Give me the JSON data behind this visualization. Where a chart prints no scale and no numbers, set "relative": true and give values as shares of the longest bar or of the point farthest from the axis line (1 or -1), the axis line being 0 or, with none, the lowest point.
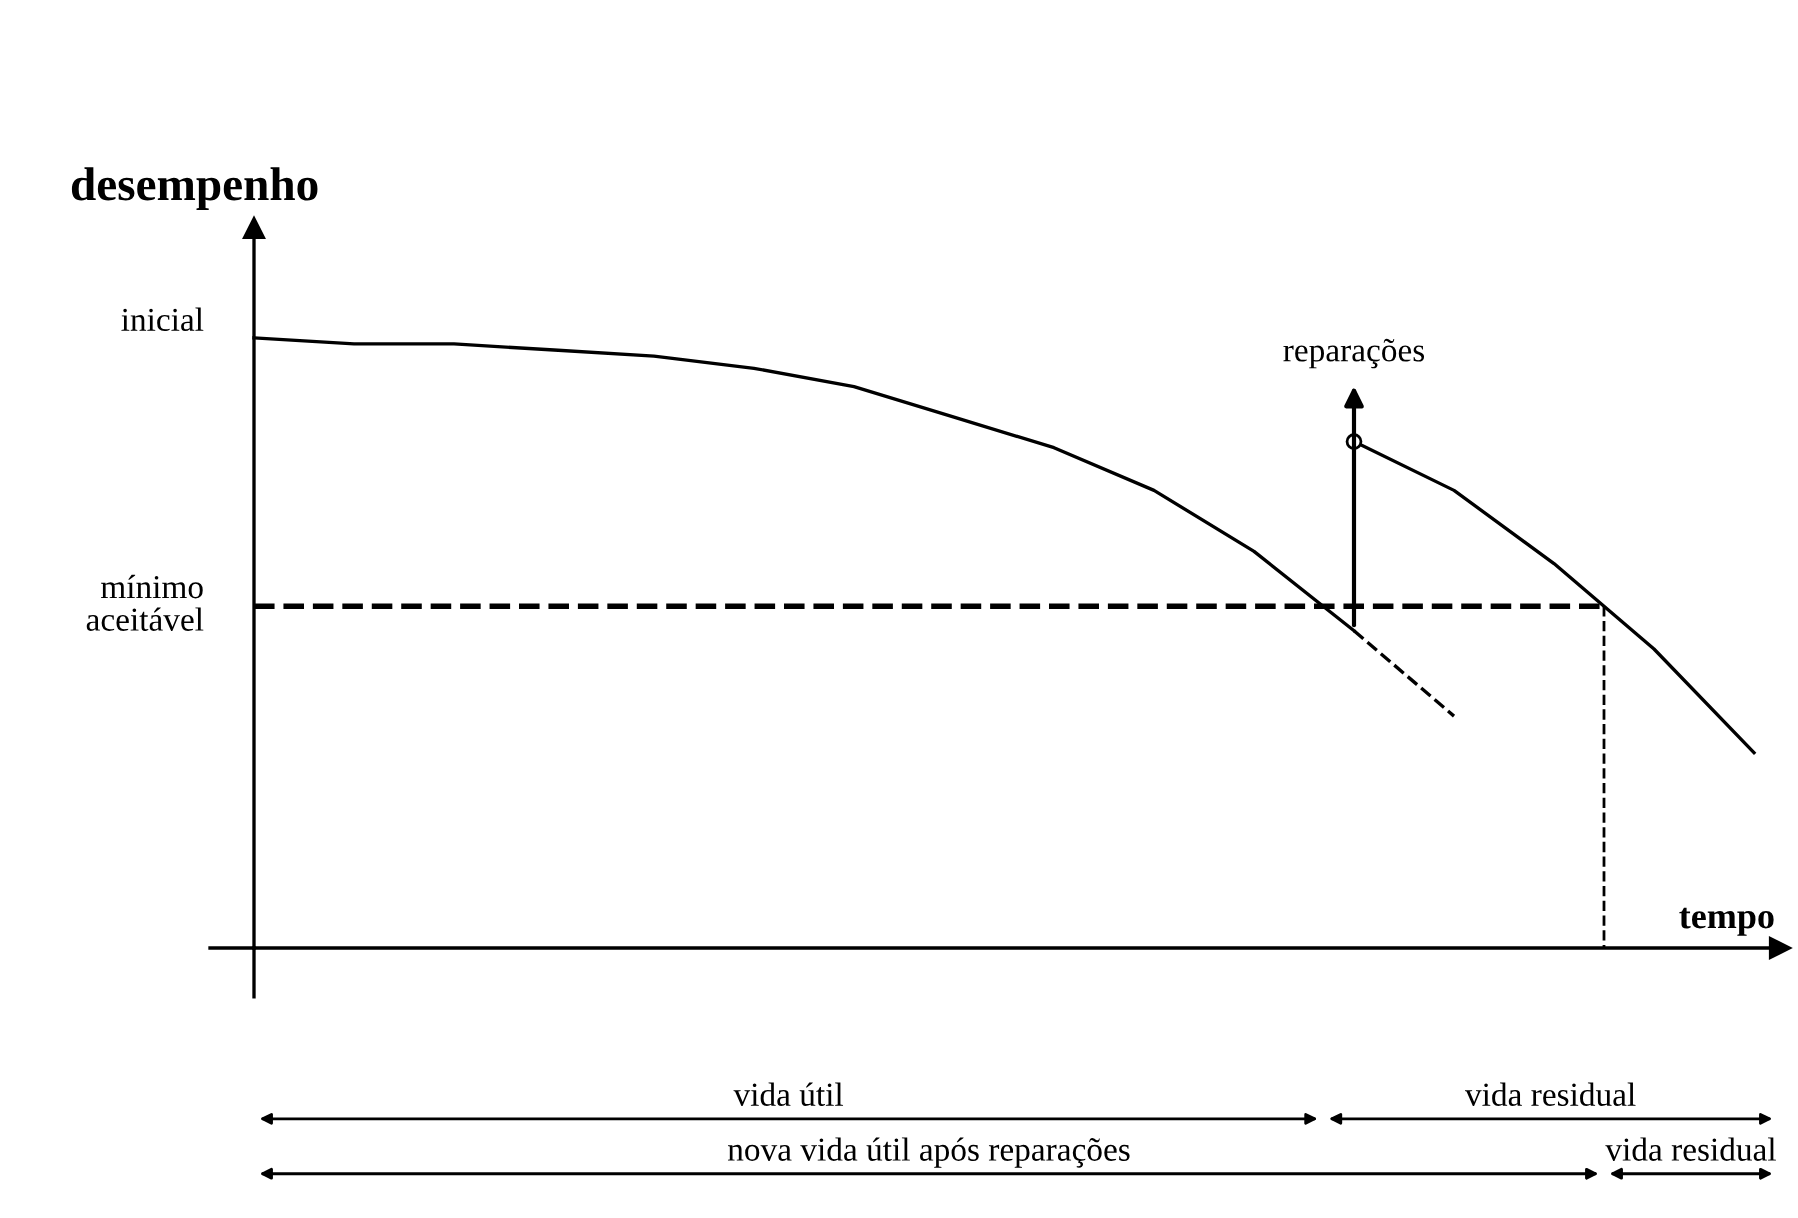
{
  "chart_data": {
    "type": "line",
    "relative": true,
    "title": "desempenho",
    "xlabel": "tempo",
    "line_style": "solid",
    "categories": [
      null,
      null,
      null,
      null,
      null,
      null,
      null,
      null,
      null,
      null,
      null,
      null,
      null,
      null,
      null,
      null
    ],
    "series": [
      {
        "color": "#000000",
        "values": [
          1.0,
          0.99,
          0.99,
          0.98,
          0.97,
          0.95,
          0.92,
          0.87,
          0.82,
          0.75,
          0.65,
          0.52,
          null,
          null,
          null,
          null
        ]
      },
      {
        "color": "#000000",
        "line_style": "dashed",
        "values": [
          null,
          null,
          null,
          null,
          null,
          null,
          null,
          null,
          null,
          null,
          null,
          0.52,
          0.38,
          null,
          null,
          null
        ]
      },
      {
        "color": "#000000",
        "values": [
          null,
          null,
          null,
          null,
          null,
          null,
          null,
          null,
          null,
          null,
          null,
          0.83,
          0.75,
          0.63,
          0.49,
          0.32
        ]
      }
    ],
    "ref_lines": [
      {
        "axis": "y",
        "value": 0.56,
        "label": "mínimo\naceitável",
        "color": "#000000",
        "line_style": "dashed"
      }
    ],
    "annotations": [
      "inicial",
      "reparações",
      "vida útil",
      "vida residual",
      "nova vida útil após reparações",
      "vida residual"
    ]
  }
}
